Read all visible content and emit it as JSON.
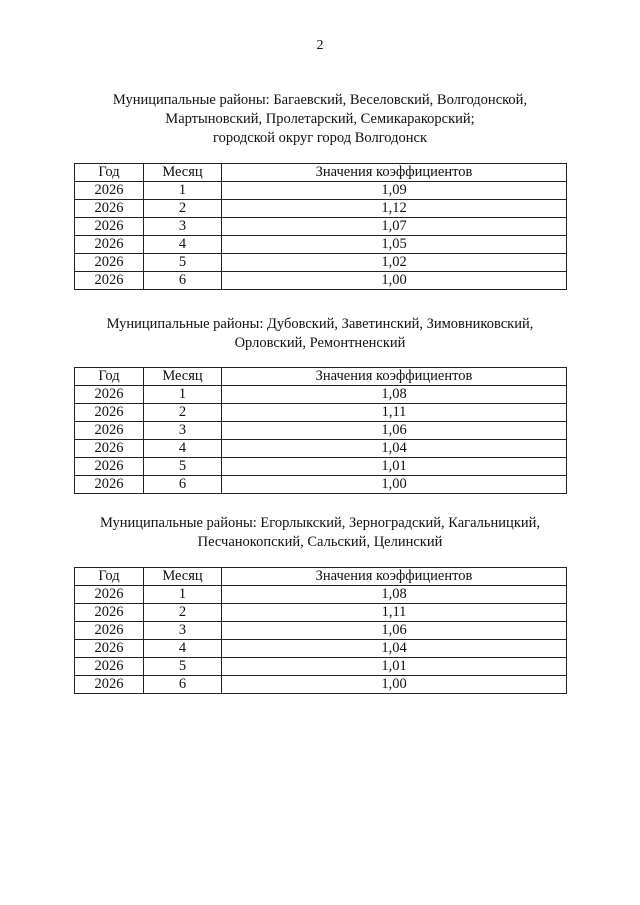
{
  "page_number": "2",
  "columns": [
    "Год",
    "Месяц",
    "Значения коэффициентов"
  ],
  "sections": [
    {
      "heading": [
        "Муниципальные районы: Багаевский, Веселовский, Волгодонской,",
        "Мартыновский, Пролетарский, Семикаракорский;",
        "городской округ город Волгодонск"
      ],
      "rows": [
        [
          "2026",
          "1",
          "1,09"
        ],
        [
          "2026",
          "2",
          "1,12"
        ],
        [
          "2026",
          "3",
          "1,07"
        ],
        [
          "2026",
          "4",
          "1,05"
        ],
        [
          "2026",
          "5",
          "1,02"
        ],
        [
          "2026",
          "6",
          "1,00"
        ]
      ]
    },
    {
      "heading": [
        "Муниципальные районы: Дубовский, Заветинский, Зимовниковский,",
        "Орловский, Ремонтненский"
      ],
      "rows": [
        [
          "2026",
          "1",
          "1,08"
        ],
        [
          "2026",
          "2",
          "1,11"
        ],
        [
          "2026",
          "3",
          "1,06"
        ],
        [
          "2026",
          "4",
          "1,04"
        ],
        [
          "2026",
          "5",
          "1,01"
        ],
        [
          "2026",
          "6",
          "1,00"
        ]
      ]
    },
    {
      "heading": [
        "Муниципальные районы: Егорлыкский, Зерноградский, Кагальницкий,",
        "Песчанокопский, Сальский, Целинский"
      ],
      "rows": [
        [
          "2026",
          "1",
          "1,08"
        ],
        [
          "2026",
          "2",
          "1,11"
        ],
        [
          "2026",
          "3",
          "1,06"
        ],
        [
          "2026",
          "4",
          "1,04"
        ],
        [
          "2026",
          "5",
          "1,01"
        ],
        [
          "2026",
          "6",
          "1,00"
        ]
      ]
    }
  ]
}
